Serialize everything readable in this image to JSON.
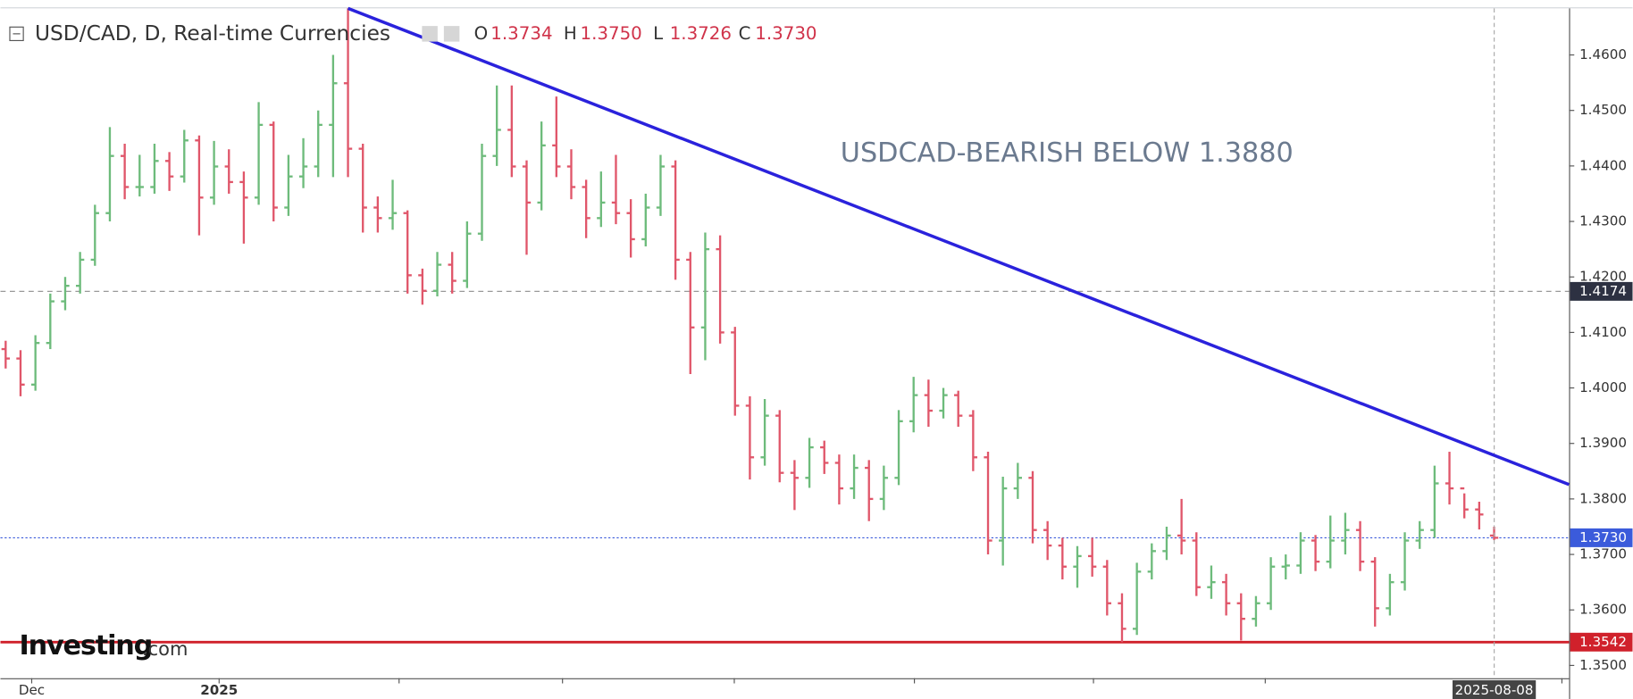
{
  "chart_data": {
    "type": "ohlc",
    "header": {
      "symbol": "USD/CAD, D, Real-time Currencies",
      "fields": [
        {
          "key": "O",
          "value": "1.3734"
        },
        {
          "key": "H",
          "value": "1.3750"
        },
        {
          "key": "L",
          "value": "1.3726"
        },
        {
          "key": "C",
          "value": "1.3730"
        }
      ]
    },
    "annotation": "USDCAD-BEARISH BELOW 1.3880",
    "watermark": {
      "brand": "Investing",
      "suffix": ".com"
    },
    "up_color": "#6dbb7b",
    "down_color": "#e0566a",
    "ohlc": [
      [
        1.407,
        1.4085,
        1.4035,
        1.4053
      ],
      [
        1.4053,
        1.4068,
        1.3985,
        1.4006
      ],
      [
        1.4006,
        1.4095,
        1.3995,
        1.4081
      ],
      [
        1.4081,
        1.417,
        1.407,
        1.4156
      ],
      [
        1.4156,
        1.42,
        1.414,
        1.4184
      ],
      [
        1.4184,
        1.4245,
        1.417,
        1.4231
      ],
      [
        1.4231,
        1.433,
        1.422,
        1.4315
      ],
      [
        1.4315,
        1.447,
        1.43,
        1.4418
      ],
      [
        1.4418,
        1.444,
        1.434,
        1.4362
      ],
      [
        1.4362,
        1.442,
        1.4345,
        1.4362
      ],
      [
        1.4362,
        1.444,
        1.435,
        1.4409
      ],
      [
        1.4409,
        1.4425,
        1.4355,
        1.4381
      ],
      [
        1.4381,
        1.4465,
        1.437,
        1.4446
      ],
      [
        1.4446,
        1.4455,
        1.4275,
        1.4343
      ],
      [
        1.4343,
        1.4445,
        1.433,
        1.4399
      ],
      [
        1.4399,
        1.443,
        1.435,
        1.4371
      ],
      [
        1.4371,
        1.439,
        1.426,
        1.4343
      ],
      [
        1.4343,
        1.4515,
        1.433,
        1.4474
      ],
      [
        1.4474,
        1.448,
        1.43,
        1.4325
      ],
      [
        1.4325,
        1.442,
        1.431,
        1.4381
      ],
      [
        1.4381,
        1.445,
        1.436,
        1.4399
      ],
      [
        1.4399,
        1.45,
        1.438,
        1.4474
      ],
      [
        1.4474,
        1.46,
        1.438,
        1.4549
      ],
      [
        1.4549,
        1.4684,
        1.438,
        1.4431
      ],
      [
        1.4431,
        1.444,
        1.428,
        1.4325
      ],
      [
        1.4325,
        1.4345,
        1.428,
        1.4306
      ],
      [
        1.4306,
        1.4375,
        1.4285,
        1.4315
      ],
      [
        1.4315,
        1.432,
        1.417,
        1.4203
      ],
      [
        1.4203,
        1.4215,
        1.415,
        1.4175
      ],
      [
        1.4175,
        1.4245,
        1.4165,
        1.4222
      ],
      [
        1.4222,
        1.4245,
        1.417,
        1.4193
      ],
      [
        1.4193,
        1.43,
        1.418,
        1.4278
      ],
      [
        1.4278,
        1.444,
        1.4265,
        1.4418
      ],
      [
        1.4418,
        1.4545,
        1.44,
        1.4465
      ],
      [
        1.4465,
        1.4545,
        1.438,
        1.4399
      ],
      [
        1.4399,
        1.441,
        1.424,
        1.4334
      ],
      [
        1.4334,
        1.448,
        1.432,
        1.4437
      ],
      [
        1.4437,
        1.4525,
        1.438,
        1.4399
      ],
      [
        1.4399,
        1.443,
        1.434,
        1.4362
      ],
      [
        1.4362,
        1.4375,
        1.427,
        1.4306
      ],
      [
        1.4306,
        1.439,
        1.429,
        1.4334
      ],
      [
        1.4334,
        1.442,
        1.4295,
        1.4315
      ],
      [
        1.4315,
        1.434,
        1.4235,
        1.4268
      ],
      [
        1.4268,
        1.435,
        1.4255,
        1.4325
      ],
      [
        1.4325,
        1.442,
        1.431,
        1.4399
      ],
      [
        1.4399,
        1.441,
        1.4195,
        1.4231
      ],
      [
        1.4231,
        1.4245,
        1.4025,
        1.4109
      ],
      [
        1.4109,
        1.428,
        1.405,
        1.425
      ],
      [
        1.425,
        1.4275,
        1.408,
        1.41
      ],
      [
        1.41,
        1.411,
        1.395,
        1.3968
      ],
      [
        1.3968,
        1.3985,
        1.3835,
        1.3875
      ],
      [
        1.3875,
        1.398,
        1.386,
        1.395
      ],
      [
        1.395,
        1.396,
        1.383,
        1.3847
      ],
      [
        1.3847,
        1.387,
        1.378,
        1.3838
      ],
      [
        1.3838,
        1.391,
        1.382,
        1.3893
      ],
      [
        1.3893,
        1.3905,
        1.3845,
        1.3865
      ],
      [
        1.3865,
        1.388,
        1.379,
        1.3819
      ],
      [
        1.3819,
        1.388,
        1.38,
        1.3856
      ],
      [
        1.3856,
        1.387,
        1.376,
        1.38
      ],
      [
        1.38,
        1.386,
        1.378,
        1.3838
      ],
      [
        1.3838,
        1.396,
        1.3825,
        1.394
      ],
      [
        1.394,
        1.402,
        1.392,
        1.3987
      ],
      [
        1.3987,
        1.4015,
        1.393,
        1.3959
      ],
      [
        1.3959,
        1.4,
        1.3945,
        1.3987
      ],
      [
        1.3987,
        1.3995,
        1.393,
        1.395
      ],
      [
        1.395,
        1.396,
        1.385,
        1.3875
      ],
      [
        1.3875,
        1.3885,
        1.37,
        1.3725
      ],
      [
        1.3725,
        1.384,
        1.368,
        1.3819
      ],
      [
        1.3819,
        1.3865,
        1.38,
        1.3838
      ],
      [
        1.3838,
        1.385,
        1.372,
        1.3744
      ],
      [
        1.3744,
        1.376,
        1.369,
        1.3716
      ],
      [
        1.3716,
        1.373,
        1.3655,
        1.3678
      ],
      [
        1.3678,
        1.3715,
        1.364,
        1.3697
      ],
      [
        1.3697,
        1.373,
        1.366,
        1.3678
      ],
      [
        1.3678,
        1.369,
        1.359,
        1.3612
      ],
      [
        1.3612,
        1.363,
        1.3542,
        1.3566
      ],
      [
        1.3566,
        1.3685,
        1.3555,
        1.3669
      ],
      [
        1.3669,
        1.372,
        1.3655,
        1.3706
      ],
      [
        1.3706,
        1.375,
        1.369,
        1.3734
      ],
      [
        1.3734,
        1.38,
        1.37,
        1.3725
      ],
      [
        1.3725,
        1.374,
        1.3625,
        1.3641
      ],
      [
        1.3641,
        1.368,
        1.362,
        1.365
      ],
      [
        1.365,
        1.3665,
        1.359,
        1.3612
      ],
      [
        1.3612,
        1.363,
        1.3545,
        1.3584
      ],
      [
        1.3584,
        1.3625,
        1.357,
        1.3612
      ],
      [
        1.3612,
        1.3695,
        1.36,
        1.3678
      ],
      [
        1.3678,
        1.37,
        1.3655,
        1.368
      ],
      [
        1.368,
        1.374,
        1.3665,
        1.3725
      ],
      [
        1.3725,
        1.3735,
        1.367,
        1.3687
      ],
      [
        1.3687,
        1.377,
        1.3675,
        1.3725
      ],
      [
        1.3725,
        1.3775,
        1.37,
        1.3744
      ],
      [
        1.3744,
        1.376,
        1.367,
        1.3687
      ],
      [
        1.3687,
        1.3695,
        1.357,
        1.3603
      ],
      [
        1.3603,
        1.3665,
        1.359,
        1.365
      ],
      [
        1.365,
        1.374,
        1.3635,
        1.3725
      ],
      [
        1.3725,
        1.376,
        1.371,
        1.3744
      ],
      [
        1.3744,
        1.386,
        1.373,
        1.3828
      ],
      [
        1.3828,
        1.3885,
        1.379,
        1.3819
      ],
      [
        1.3819,
        1.381,
        1.3765,
        1.3781
      ],
      [
        1.3781,
        1.3795,
        1.3745,
        1.3772
      ],
      [
        1.3734,
        1.375,
        1.3726,
        1.373
      ]
    ],
    "xlim": [
      -0.35,
      105.03
    ],
    "xticks": [
      {
        "value": 1.75,
        "label": "Dec"
      },
      {
        "value": 14.34,
        "label": "2025"
      },
      {
        "value": 100,
        "label": "2025-08-08"
      }
    ],
    "xticks_minor": [
      26.43,
      37.41,
      48.95,
      61.05,
      73.08,
      84.62,
      104.55
    ],
    "ylim": [
      1.3477,
      1.4684
    ],
    "yticks": [
      {
        "value": 1.35,
        "label": "1.3500"
      },
      {
        "value": 1.36,
        "label": "1.3600"
      },
      {
        "value": 1.37,
        "label": "1.3700"
      },
      {
        "value": 1.38,
        "label": "1.3800"
      },
      {
        "value": 1.39,
        "label": "1.3900"
      },
      {
        "value": 1.4,
        "label": "1.4000"
      },
      {
        "value": 1.41,
        "label": "1.4100"
      },
      {
        "value": 1.42,
        "label": "1.4200"
      },
      {
        "value": 1.43,
        "label": "1.4300"
      },
      {
        "value": 1.44,
        "label": "1.4400"
      },
      {
        "value": 1.45,
        "label": "1.4500"
      },
      {
        "value": 1.46,
        "label": "1.4600"
      }
    ],
    "trendline": {
      "x": [
        23,
        105.03
      ],
      "y": [
        1.4684,
        1.3826
      ],
      "color": "#2a22dc"
    },
    "price_lines": [
      {
        "value": 1.4174,
        "color": "#2d3142",
        "style": "dashed"
      },
      {
        "value": {
          "value": 1.373,
          "label": "1.3730"
        },
        "color": "#3b5bdb",
        "style": "dotted"
      },
      {
        "value": 1.3542,
        "color": "#d0212b",
        "style": "solid"
      }
    ]
  }
}
